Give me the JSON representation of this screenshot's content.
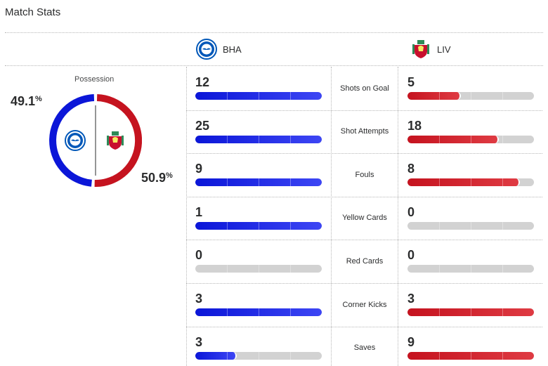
{
  "title": "Match Stats",
  "teams": {
    "home": {
      "abbr": "BHA",
      "crest_icon": "brighton-crest-icon",
      "color": "#0b16d8"
    },
    "away": {
      "abbr": "LIV",
      "crest_icon": "liverpool-crest-icon",
      "color": "#c5131f"
    }
  },
  "possession": {
    "label": "Possession",
    "home_value": "49.1",
    "away_value": "50.9",
    "unit": "%",
    "home_fraction": 0.491,
    "away_fraction": 0.509
  },
  "stats": [
    {
      "label": "Shots on Goal",
      "home": "12",
      "away": "5",
      "home_fill": 1.0,
      "away_fill": 0.42
    },
    {
      "label": "Shot Attempts",
      "home": "25",
      "away": "18",
      "home_fill": 1.0,
      "away_fill": 0.72
    },
    {
      "label": "Fouls",
      "home": "9",
      "away": "8",
      "home_fill": 1.0,
      "away_fill": 0.89
    },
    {
      "label": "Yellow Cards",
      "home": "1",
      "away": "0",
      "home_fill": 1.0,
      "away_fill": 0.0
    },
    {
      "label": "Red Cards",
      "home": "0",
      "away": "0",
      "home_fill": 0.0,
      "away_fill": 0.0
    },
    {
      "label": "Corner Kicks",
      "home": "3",
      "away": "3",
      "home_fill": 1.0,
      "away_fill": 1.0
    },
    {
      "label": "Saves",
      "home": "3",
      "away": "9",
      "home_fill": 0.33,
      "away_fill": 1.0
    }
  ]
}
